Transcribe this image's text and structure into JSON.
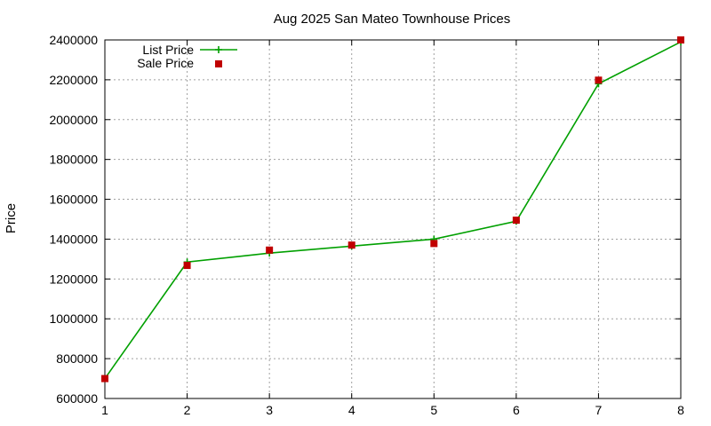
{
  "chart_data": {
    "type": "line",
    "title": "Aug 2025 San Mateo Townhouse Prices",
    "xlabel": "",
    "ylabel": "Price",
    "x": [
      1,
      2,
      3,
      4,
      5,
      6,
      7,
      8
    ],
    "xlim": [
      1,
      8
    ],
    "ylim": [
      600000,
      2400000
    ],
    "yticks": [
      600000,
      800000,
      1000000,
      1200000,
      1400000,
      1600000,
      1800000,
      2000000,
      2200000,
      2400000
    ],
    "grid": true,
    "legend_position": "top-left",
    "series": [
      {
        "name": "List Price",
        "style": "line-with-plus",
        "color": "#00a000",
        "values": [
          700000,
          1285000,
          1330000,
          1365000,
          1400000,
          1490000,
          2180000,
          2390000
        ]
      },
      {
        "name": "Sale Price",
        "style": "square-markers",
        "color": "#c00000",
        "values": [
          700000,
          1268000,
          1345000,
          1370000,
          1378000,
          1495000,
          2198000,
          2400000
        ]
      }
    ]
  }
}
